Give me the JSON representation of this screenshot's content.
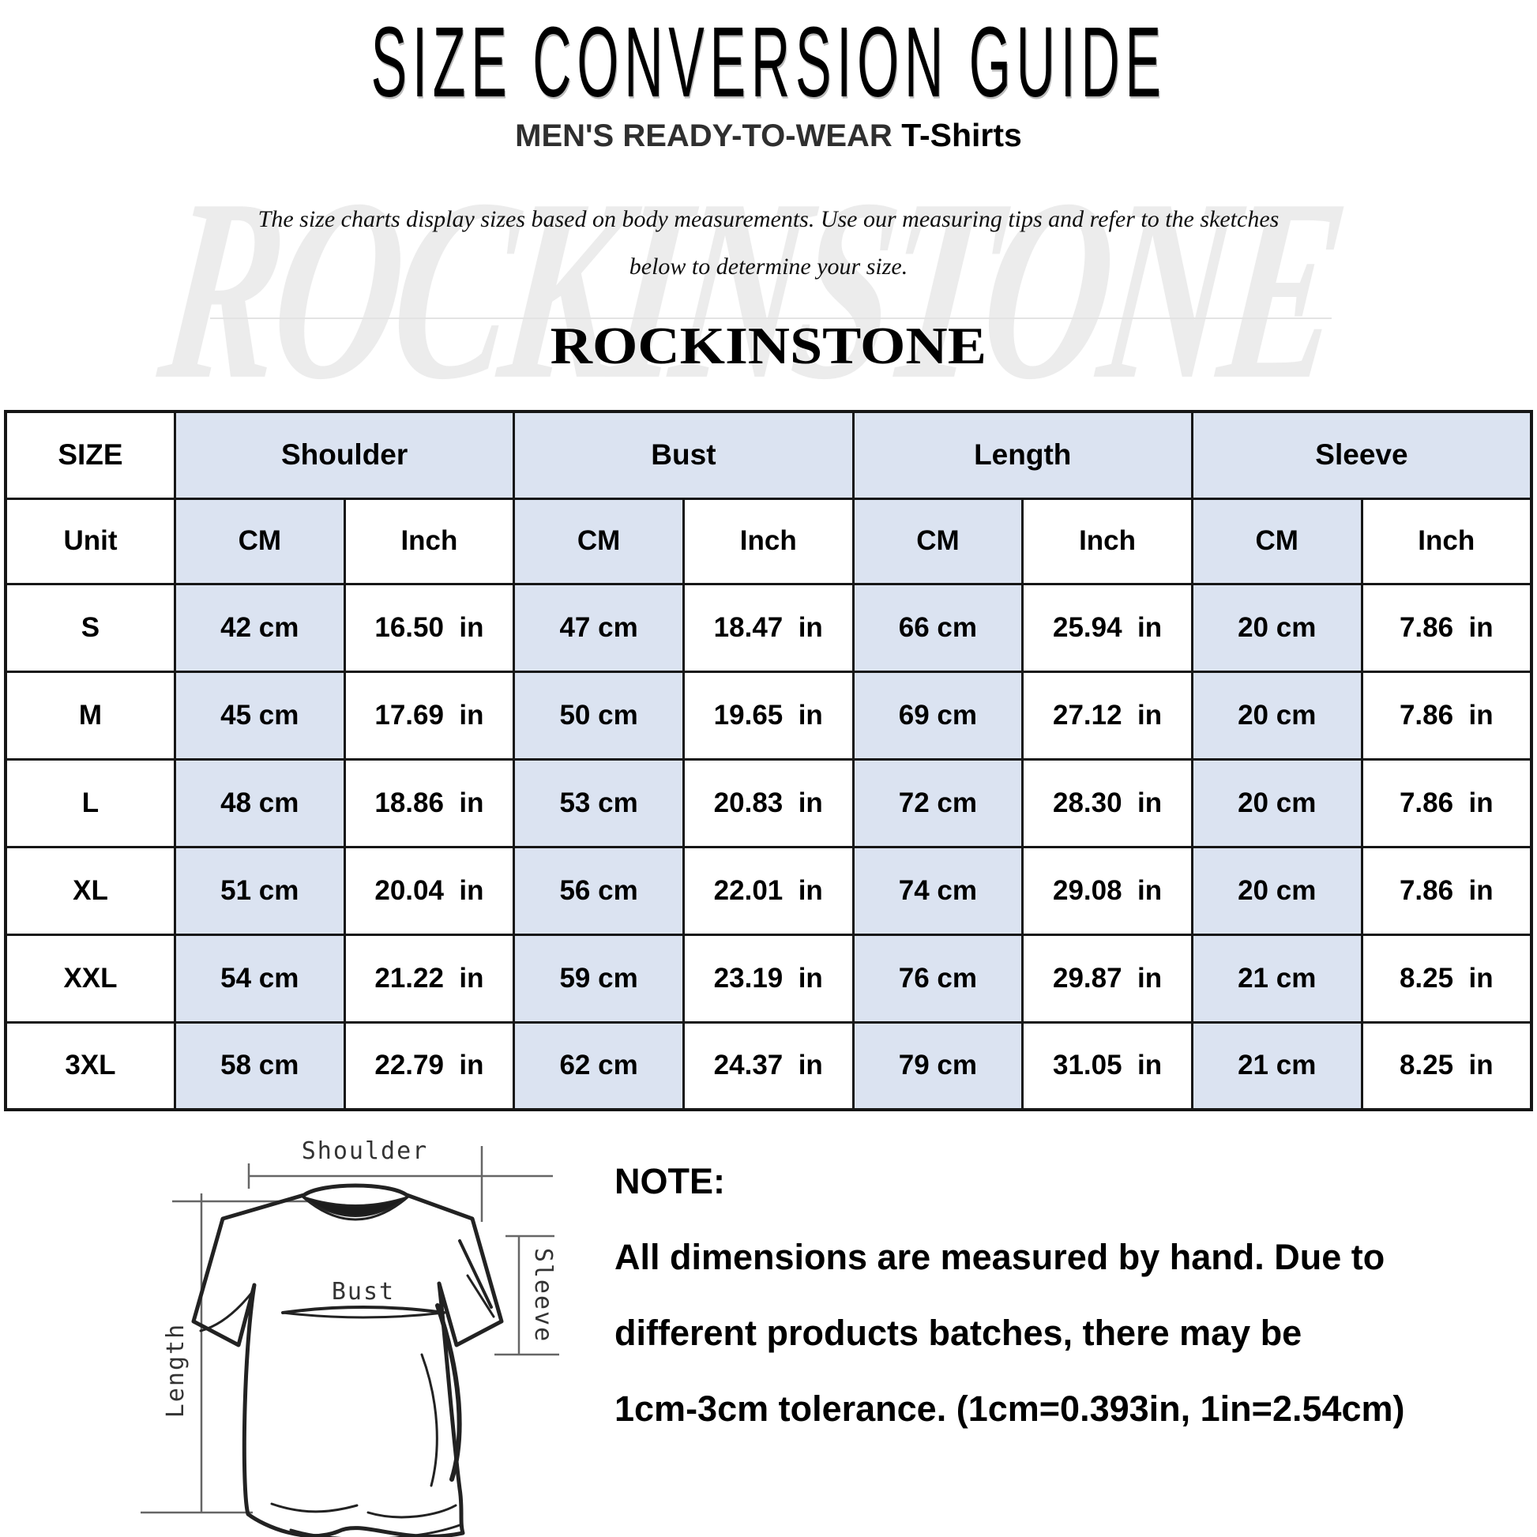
{
  "page": {
    "title": "SIZE CONVERSION GUIDE",
    "subtitle_main": "MEN'S READY-TO-WEAR",
    "subtitle_secondary": " T-Shirts",
    "description_line1": "The size charts display sizes based on body measurements. Use our measuring tips and refer to the sketches",
    "description_line2": "below to determine your size.",
    "brand": "ROCKINSTONE",
    "watermark": "ROCKINSTONE"
  },
  "colors": {
    "cell_blue": "#dbe3f1",
    "border_black": "#161616",
    "watermark_gray": "#e8e8e8"
  },
  "table": {
    "column_groups": [
      {
        "label": "SIZE",
        "span": 1
      },
      {
        "label": "Shoulder",
        "span": 2
      },
      {
        "label": "Bust",
        "span": 2
      },
      {
        "label": "Length",
        "span": 2
      },
      {
        "label": "Sleeve",
        "span": 2
      }
    ],
    "unit_row": [
      "Unit",
      "CM",
      "Inch",
      "CM",
      "Inch",
      "CM",
      "Inch",
      "CM",
      "Inch"
    ],
    "rows": [
      {
        "size": "S",
        "cells": [
          "42 cm",
          "16.50  in",
          "47 cm",
          "18.47  in",
          "66 cm",
          "25.94  in",
          "20 cm",
          "7.86  in"
        ]
      },
      {
        "size": "M",
        "cells": [
          "45 cm",
          "17.69  in",
          "50 cm",
          "19.65  in",
          "69 cm",
          "27.12  in",
          "20 cm",
          "7.86  in"
        ]
      },
      {
        "size": "L",
        "cells": [
          "48 cm",
          "18.86  in",
          "53 cm",
          "20.83  in",
          "72 cm",
          "28.30  in",
          "20 cm",
          "7.86  in"
        ]
      },
      {
        "size": "XL",
        "cells": [
          "51 cm",
          "20.04  in",
          "56 cm",
          "22.01  in",
          "74 cm",
          "29.08  in",
          "20 cm",
          "7.86  in"
        ]
      },
      {
        "size": "XXL",
        "cells": [
          "54 cm",
          "21.22  in",
          "59 cm",
          "23.19  in",
          "76 cm",
          "29.87  in",
          "21 cm",
          "8.25  in"
        ]
      },
      {
        "size": "3XL",
        "cells": [
          "58 cm",
          "22.79  in",
          "62 cm",
          "24.37  in",
          "79 cm",
          "31.05  in",
          "21 cm",
          "8.25  in"
        ]
      }
    ]
  },
  "diagram": {
    "labels": {
      "shoulder": "Shoulder",
      "bust": "Bust",
      "length": "Length",
      "sleeve": "Sleeve"
    }
  },
  "note": {
    "heading": "NOTE:",
    "line1": "All dimensions are measured by hand. Due to",
    "line2": "different products batches, there may be",
    "line3": "1cm-3cm tolerance. (1cm=0.393in, 1in=2.54cm)"
  }
}
